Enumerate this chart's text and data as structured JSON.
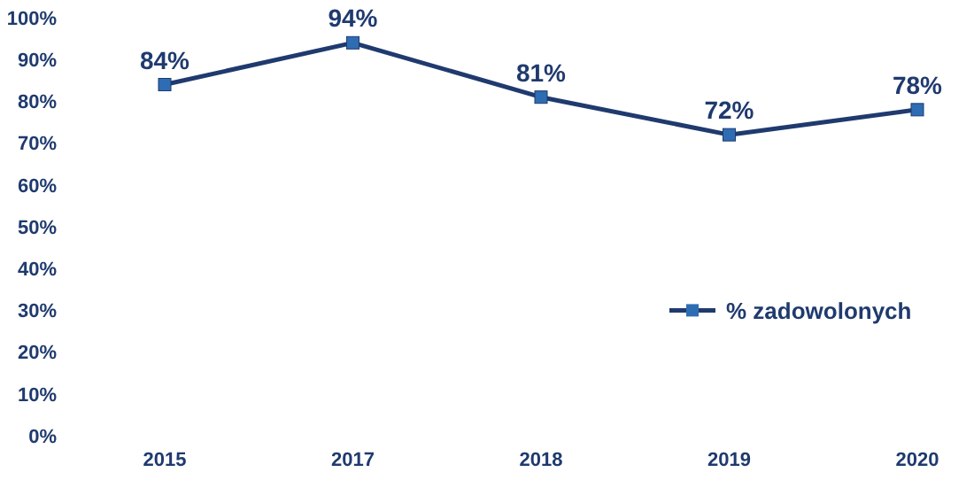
{
  "chart_data": {
    "type": "line",
    "categories": [
      "2015",
      "2017",
      "2018",
      "2019",
      "2020"
    ],
    "series": [
      {
        "name": "% zadowolonych",
        "color": "#1f3a6e",
        "values": [
          84,
          94,
          81,
          72,
          78
        ],
        "value_labels": [
          "84%",
          "94%",
          "81%",
          "72%",
          "78%"
        ]
      }
    ],
    "ylim": [
      0,
      100
    ],
    "yticks": [
      {
        "value": 0,
        "label": "0%"
      },
      {
        "value": 10,
        "label": "10%"
      },
      {
        "value": 20,
        "label": "20%"
      },
      {
        "value": 30,
        "label": "30%"
      },
      {
        "value": 40,
        "label": "40%"
      },
      {
        "value": 50,
        "label": "50%"
      },
      {
        "value": 60,
        "label": "60%"
      },
      {
        "value": 70,
        "label": "70%"
      },
      {
        "value": 80,
        "label": "80%"
      },
      {
        "value": 90,
        "label": "90%"
      },
      {
        "value": 100,
        "label": "100%"
      }
    ],
    "marker": "square",
    "line_style": "solid",
    "grid": false,
    "legend": "bottom right"
  }
}
